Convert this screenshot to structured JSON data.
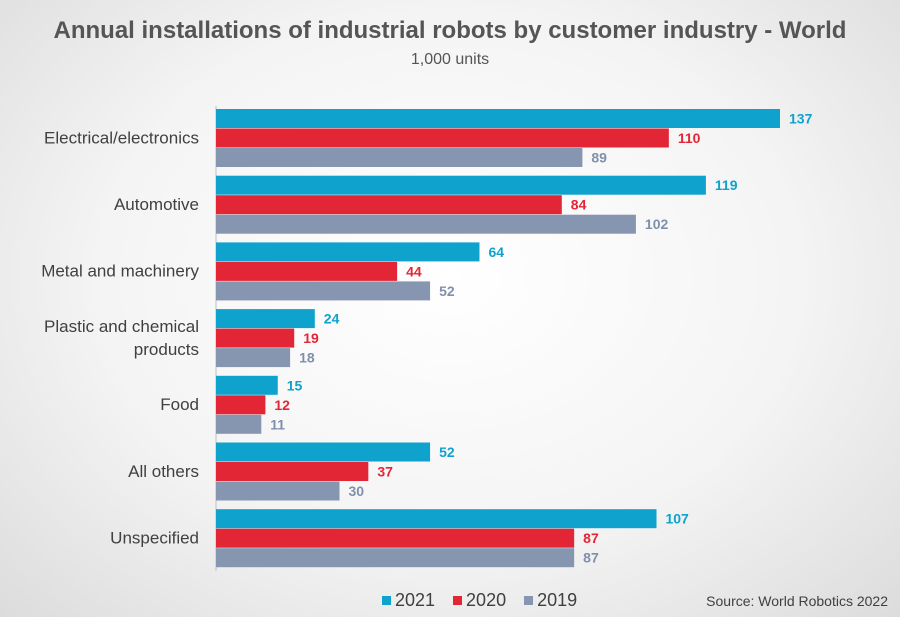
{
  "chart_data": {
    "type": "bar",
    "orientation": "horizontal",
    "title": "Annual installations of industrial robots by customer industry - World",
    "subtitle": "1,000 units",
    "categories": [
      [
        "Electrical/electronics"
      ],
      [
        "Automotive"
      ],
      [
        "Metal and machinery"
      ],
      [
        "Plastic and chemical",
        "products"
      ],
      [
        "Food"
      ],
      [
        "All others"
      ],
      [
        "Unspecified"
      ]
    ],
    "series": [
      {
        "name": "2021",
        "color": "#0ea2cc",
        "label_color": "#0ea2cc",
        "values": [
          137,
          119,
          64,
          24,
          15,
          52,
          107
        ]
      },
      {
        "name": "2020",
        "color": "#e32636",
        "label_color": "#e32636",
        "values": [
          110,
          84,
          44,
          19,
          12,
          37,
          87
        ]
      },
      {
        "name": "2019",
        "color": "#8696b0",
        "label_color": "#7f90ad",
        "values": [
          89,
          102,
          52,
          18,
          11,
          30,
          87
        ]
      }
    ],
    "xlim": [
      0,
      137
    ],
    "grid": false,
    "legend_position": "bottom",
    "source": "Source: World Robotics 2022"
  }
}
